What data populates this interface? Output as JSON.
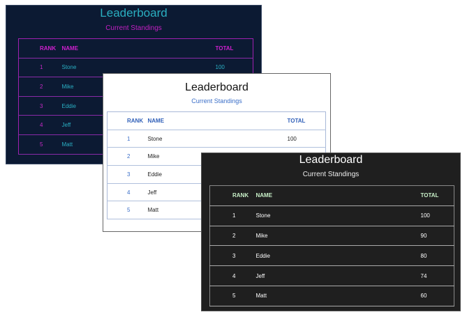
{
  "columns": [
    "RANK",
    "NAME",
    "TOTAL"
  ],
  "panels": [
    {
      "theme": "navy",
      "title": "Leaderboard",
      "subtitle": "Current Standings",
      "accent": "#c41fc4",
      "rows": [
        {
          "rank": "1",
          "name": "Stone",
          "total": "100"
        },
        {
          "rank": "2",
          "name": "Mike"
        },
        {
          "rank": "3",
          "name": "Eddie"
        },
        {
          "rank": "4",
          "name": "Jeff"
        },
        {
          "rank": "5",
          "name": "Matt"
        }
      ]
    },
    {
      "theme": "light",
      "title": "Leaderboard",
      "subtitle": "Current Standings",
      "accent": "#3a6ec8",
      "rows": [
        {
          "rank": "1",
          "name": "Stone",
          "total": "100"
        },
        {
          "rank": "2",
          "name": "Mike"
        },
        {
          "rank": "3",
          "name": "Eddie"
        },
        {
          "rank": "4",
          "name": "Jeff"
        },
        {
          "rank": "5",
          "name": "Matt"
        }
      ]
    },
    {
      "theme": "dark",
      "title": "Leaderboard",
      "subtitle": "Current Standings",
      "accent": "#c8f0c8",
      "rows": [
        {
          "rank": "1",
          "name": "Stone",
          "total": "100"
        },
        {
          "rank": "2",
          "name": "Mike",
          "total": "90"
        },
        {
          "rank": "3",
          "name": "Eddie",
          "total": "80"
        },
        {
          "rank": "4",
          "name": "Jeff",
          "total": "74"
        },
        {
          "rank": "5",
          "name": "Matt",
          "total": "60"
        }
      ]
    }
  ]
}
